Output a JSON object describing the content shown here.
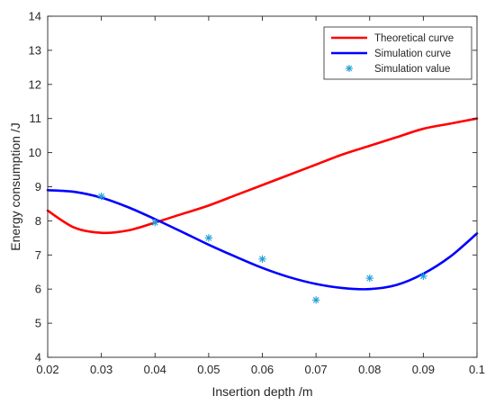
{
  "chart_data": {
    "type": "line",
    "title": "",
    "xlabel": "Insertion depth /m",
    "ylabel": "Energy consumption /J",
    "xlim": [
      0.02,
      0.1
    ],
    "ylim": [
      4,
      14
    ],
    "x_ticks": [
      0.02,
      0.03,
      0.04,
      0.05,
      0.06,
      0.07,
      0.08,
      0.09,
      0.1
    ],
    "x_tick_labels": [
      "0.02",
      "0.03",
      "0.04",
      "0.05",
      "0.06",
      "0.07",
      "0.08",
      "0.09",
      "0.1"
    ],
    "y_ticks": [
      4,
      5,
      6,
      7,
      8,
      9,
      10,
      11,
      12,
      13,
      14
    ],
    "y_tick_labels": [
      "4",
      "5",
      "6",
      "7",
      "8",
      "9",
      "10",
      "11",
      "12",
      "13",
      "14"
    ],
    "grid": false,
    "legend_position": "top-right",
    "series": [
      {
        "name": "Theoretical curve",
        "kind": "line",
        "color": "#ff0000",
        "x": [
          0.02,
          0.025,
          0.03,
          0.035,
          0.04,
          0.045,
          0.05,
          0.055,
          0.06,
          0.065,
          0.07,
          0.075,
          0.08,
          0.085,
          0.09,
          0.095,
          0.1
        ],
        "y": [
          8.3,
          7.8,
          7.65,
          7.72,
          7.95,
          8.2,
          8.45,
          8.75,
          9.05,
          9.35,
          9.65,
          9.95,
          10.2,
          10.45,
          10.7,
          10.85,
          11.0
        ]
      },
      {
        "name": "Simulation curve",
        "kind": "line",
        "color": "#0000ff",
        "x": [
          0.02,
          0.025,
          0.03,
          0.035,
          0.04,
          0.045,
          0.05,
          0.055,
          0.06,
          0.065,
          0.07,
          0.075,
          0.08,
          0.085,
          0.09,
          0.095,
          0.1
        ],
        "y": [
          8.9,
          8.85,
          8.68,
          8.4,
          8.05,
          7.68,
          7.3,
          6.95,
          6.62,
          6.35,
          6.15,
          6.03,
          6.0,
          6.12,
          6.45,
          6.95,
          7.63
        ]
      },
      {
        "name": "Simulation value",
        "kind": "scatter",
        "marker": "*",
        "color": "#1f9fd6",
        "x": [
          0.03,
          0.04,
          0.05,
          0.06,
          0.07,
          0.08,
          0.09
        ],
        "y": [
          8.72,
          7.95,
          7.5,
          6.88,
          5.68,
          6.32,
          6.38
        ]
      }
    ]
  }
}
